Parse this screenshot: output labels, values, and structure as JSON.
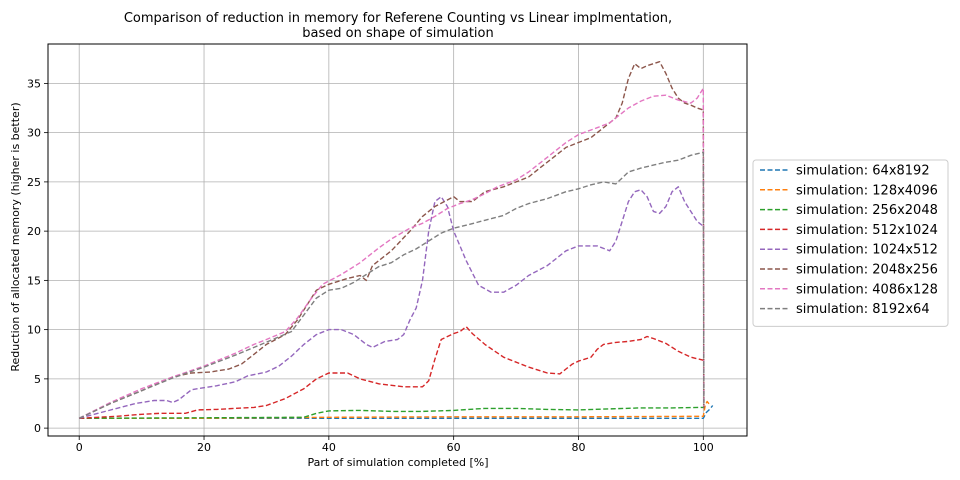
{
  "chart_data": {
    "type": "line",
    "title": "Comparison of reduction in memory for Referene Counting vs Linear implmentation,",
    "subtitle": "based on shape of simulation",
    "xlabel": "Part of simulation completed [%]",
    "ylabel": "Reduction of allocated memory (higher is better)",
    "xlim": [
      -5,
      107
    ],
    "ylim": [
      -0.8,
      39
    ],
    "xticks": [
      0,
      20,
      40,
      60,
      80,
      100
    ],
    "yticks": [
      0,
      5,
      10,
      15,
      20,
      25,
      30,
      35
    ],
    "grid": true,
    "legend_position": "right-outside",
    "series": [
      {
        "name": "simulation: 64x8192",
        "color": "#1f77b4",
        "points": [
          [
            0,
            1.0
          ],
          [
            20,
            1.0
          ],
          [
            40,
            1.0
          ],
          [
            60,
            1.0
          ],
          [
            80,
            1.0
          ],
          [
            100,
            1.0
          ],
          [
            100.5,
            1.6
          ],
          [
            101,
            1.9
          ],
          [
            101.5,
            2.3
          ]
        ]
      },
      {
        "name": "simulation: 128x4096",
        "color": "#ff7f0e",
        "points": [
          [
            0,
            1.0
          ],
          [
            20,
            1.0
          ],
          [
            40,
            1.1
          ],
          [
            60,
            1.15
          ],
          [
            80,
            1.15
          ],
          [
            100,
            1.2
          ],
          [
            100.3,
            2.3
          ],
          [
            100.6,
            2.7
          ],
          [
            101,
            2.4
          ]
        ]
      },
      {
        "name": "simulation: 256x2048",
        "color": "#2ca02c",
        "points": [
          [
            0,
            1.0
          ],
          [
            20,
            1.05
          ],
          [
            36,
            1.1
          ],
          [
            38,
            1.5
          ],
          [
            40,
            1.75
          ],
          [
            45,
            1.8
          ],
          [
            50,
            1.7
          ],
          [
            55,
            1.7
          ],
          [
            60,
            1.8
          ],
          [
            65,
            2.0
          ],
          [
            70,
            2.0
          ],
          [
            75,
            1.9
          ],
          [
            80,
            1.85
          ],
          [
            85,
            1.95
          ],
          [
            90,
            2.05
          ],
          [
            95,
            2.05
          ],
          [
            100,
            2.1
          ]
        ]
      },
      {
        "name": "simulation: 512x1024",
        "color": "#d62728",
        "points": [
          [
            0,
            1.0
          ],
          [
            3,
            1.1
          ],
          [
            6,
            1.2
          ],
          [
            10,
            1.4
          ],
          [
            13,
            1.5
          ],
          [
            17,
            1.5
          ],
          [
            19,
            1.85
          ],
          [
            22,
            1.9
          ],
          [
            25,
            2.0
          ],
          [
            28,
            2.1
          ],
          [
            30,
            2.3
          ],
          [
            33,
            3.0
          ],
          [
            36,
            4.0
          ],
          [
            38,
            5.0
          ],
          [
            40,
            5.6
          ],
          [
            43,
            5.6
          ],
          [
            45,
            5.0
          ],
          [
            48,
            4.5
          ],
          [
            52,
            4.2
          ],
          [
            55,
            4.2
          ],
          [
            56,
            4.8
          ],
          [
            57,
            7.0
          ],
          [
            58,
            9.0
          ],
          [
            60,
            9.6
          ],
          [
            61,
            9.8
          ],
          [
            62,
            10.3
          ],
          [
            63,
            9.6
          ],
          [
            65,
            8.5
          ],
          [
            68,
            7.2
          ],
          [
            72,
            6.2
          ],
          [
            75,
            5.6
          ],
          [
            77,
            5.5
          ],
          [
            78,
            6.0
          ],
          [
            79,
            6.5
          ],
          [
            80,
            6.8
          ],
          [
            81,
            7.0
          ],
          [
            82,
            7.2
          ],
          [
            83,
            8.0
          ],
          [
            84,
            8.5
          ],
          [
            86,
            8.7
          ],
          [
            88,
            8.8
          ],
          [
            90,
            9.0
          ],
          [
            91,
            9.3
          ],
          [
            92,
            9.1
          ],
          [
            94,
            8.6
          ],
          [
            96,
            7.8
          ],
          [
            98,
            7.2
          ],
          [
            100,
            6.9
          ]
        ]
      },
      {
        "name": "simulation: 1024x512",
        "color": "#9467bd",
        "points": [
          [
            0,
            1.0
          ],
          [
            3,
            1.5
          ],
          [
            6,
            2.0
          ],
          [
            9,
            2.5
          ],
          [
            12,
            2.8
          ],
          [
            14,
            2.8
          ],
          [
            15,
            2.6
          ],
          [
            16,
            2.9
          ],
          [
            17,
            3.4
          ],
          [
            18,
            3.9
          ],
          [
            20,
            4.1
          ],
          [
            22,
            4.3
          ],
          [
            25,
            4.7
          ],
          [
            27,
            5.3
          ],
          [
            30,
            5.7
          ],
          [
            32,
            6.3
          ],
          [
            34,
            7.3
          ],
          [
            36,
            8.5
          ],
          [
            38,
            9.5
          ],
          [
            40,
            10.0
          ],
          [
            42,
            10.0
          ],
          [
            44,
            9.5
          ],
          [
            46,
            8.5
          ],
          [
            47,
            8.2
          ],
          [
            49,
            8.8
          ],
          [
            51,
            9.0
          ],
          [
            52,
            9.5
          ],
          [
            53,
            11.0
          ],
          [
            54,
            12.2
          ],
          [
            55,
            15.0
          ],
          [
            56,
            20.0
          ],
          [
            57,
            23.0
          ],
          [
            58,
            23.5
          ],
          [
            59,
            22.5
          ],
          [
            60,
            20.0
          ],
          [
            62,
            17.0
          ],
          [
            64,
            14.5
          ],
          [
            66,
            13.8
          ],
          [
            68,
            13.8
          ],
          [
            70,
            14.5
          ],
          [
            72,
            15.5
          ],
          [
            75,
            16.5
          ],
          [
            78,
            18.0
          ],
          [
            80,
            18.5
          ],
          [
            83,
            18.5
          ],
          [
            85,
            18.0
          ],
          [
            86,
            19.0
          ],
          [
            87,
            21.0
          ],
          [
            88,
            23.0
          ],
          [
            89,
            24.0
          ],
          [
            90,
            24.2
          ],
          [
            91,
            23.5
          ],
          [
            92,
            22.0
          ],
          [
            93,
            21.8
          ],
          [
            94,
            22.5
          ],
          [
            95,
            24.0
          ],
          [
            96,
            24.5
          ],
          [
            97,
            23.0
          ],
          [
            98,
            22.0
          ],
          [
            99,
            21.0
          ],
          [
            100,
            20.5
          ]
        ]
      },
      {
        "name": "simulation: 2048x256",
        "color": "#8c564b",
        "points": [
          [
            0,
            1.0
          ],
          [
            5,
            2.5
          ],
          [
            10,
            3.8
          ],
          [
            15,
            5.2
          ],
          [
            18,
            5.6
          ],
          [
            21,
            5.7
          ],
          [
            24,
            6.0
          ],
          [
            26,
            6.5
          ],
          [
            28,
            7.5
          ],
          [
            30,
            8.5
          ],
          [
            33,
            9.5
          ],
          [
            35,
            11.0
          ],
          [
            37,
            13.0
          ],
          [
            38,
            14.0
          ],
          [
            40,
            14.6
          ],
          [
            43,
            15.2
          ],
          [
            45,
            15.5
          ],
          [
            46,
            15.0
          ],
          [
            47,
            16.5
          ],
          [
            50,
            18.0
          ],
          [
            53,
            20.0
          ],
          [
            55,
            21.5
          ],
          [
            57,
            22.5
          ],
          [
            60,
            23.5
          ],
          [
            61,
            23.0
          ],
          [
            63,
            23.0
          ],
          [
            65,
            24.0
          ],
          [
            68,
            24.5
          ],
          [
            70,
            25.0
          ],
          [
            72,
            25.5
          ],
          [
            74,
            26.5
          ],
          [
            76,
            27.5
          ],
          [
            78,
            28.5
          ],
          [
            80,
            29.0
          ],
          [
            82,
            29.5
          ],
          [
            84,
            30.5
          ],
          [
            86,
            31.5
          ],
          [
            87,
            33.0
          ],
          [
            88,
            35.5
          ],
          [
            89,
            37.0
          ],
          [
            90,
            36.5
          ],
          [
            91,
            36.8
          ],
          [
            92,
            37.0
          ],
          [
            93,
            37.2
          ],
          [
            94,
            36.0
          ],
          [
            95,
            34.5
          ],
          [
            96,
            33.5
          ],
          [
            97,
            33.0
          ],
          [
            98,
            32.8
          ],
          [
            99,
            32.5
          ],
          [
            100,
            32.3
          ],
          [
            100.1,
            2.0
          ]
        ]
      },
      {
        "name": "simulation: 4086x128",
        "color": "#e377c2",
        "points": [
          [
            0,
            1.0
          ],
          [
            5,
            2.6
          ],
          [
            10,
            4.0
          ],
          [
            15,
            5.2
          ],
          [
            20,
            6.3
          ],
          [
            25,
            7.6
          ],
          [
            28,
            8.5
          ],
          [
            30,
            9.0
          ],
          [
            33,
            9.8
          ],
          [
            35,
            11.2
          ],
          [
            37,
            13.0
          ],
          [
            39,
            14.6
          ],
          [
            42,
            15.6
          ],
          [
            45,
            16.8
          ],
          [
            48,
            18.3
          ],
          [
            50,
            19.2
          ],
          [
            53,
            20.3
          ],
          [
            55,
            20.8
          ],
          [
            57,
            21.5
          ],
          [
            59,
            22.3
          ],
          [
            61,
            22.8
          ],
          [
            63,
            23.2
          ],
          [
            65,
            23.8
          ],
          [
            67,
            24.5
          ],
          [
            70,
            25.2
          ],
          [
            72,
            26.0
          ],
          [
            75,
            27.5
          ],
          [
            78,
            29.0
          ],
          [
            80,
            29.8
          ],
          [
            83,
            30.5
          ],
          [
            85,
            31.0
          ],
          [
            87,
            32.0
          ],
          [
            88,
            32.5
          ],
          [
            90,
            33.2
          ],
          [
            92,
            33.7
          ],
          [
            94,
            33.8
          ],
          [
            96,
            33.3
          ],
          [
            98,
            33.0
          ],
          [
            99,
            33.5
          ],
          [
            100,
            34.5
          ],
          [
            100.1,
            2.2
          ]
        ]
      },
      {
        "name": "simulation: 8192x64",
        "color": "#7f7f7f",
        "points": [
          [
            0,
            1.0
          ],
          [
            5,
            2.5
          ],
          [
            10,
            3.8
          ],
          [
            15,
            5.1
          ],
          [
            20,
            6.2
          ],
          [
            25,
            7.4
          ],
          [
            28,
            8.2
          ],
          [
            31,
            9.0
          ],
          [
            34,
            9.8
          ],
          [
            36,
            11.5
          ],
          [
            38,
            13.2
          ],
          [
            40,
            14.0
          ],
          [
            42,
            14.2
          ],
          [
            44,
            14.8
          ],
          [
            46,
            15.6
          ],
          [
            48,
            16.4
          ],
          [
            50,
            16.8
          ],
          [
            52,
            17.6
          ],
          [
            54,
            18.2
          ],
          [
            56,
            19.0
          ],
          [
            58,
            19.8
          ],
          [
            60,
            20.3
          ],
          [
            62,
            20.6
          ],
          [
            65,
            21.1
          ],
          [
            68,
            21.6
          ],
          [
            70,
            22.3
          ],
          [
            72,
            22.8
          ],
          [
            75,
            23.3
          ],
          [
            78,
            24.0
          ],
          [
            80,
            24.3
          ],
          [
            82,
            24.7
          ],
          [
            84,
            25.0
          ],
          [
            86,
            24.8
          ],
          [
            88,
            26.0
          ],
          [
            90,
            26.4
          ],
          [
            92,
            26.7
          ],
          [
            94,
            27.0
          ],
          [
            96,
            27.2
          ],
          [
            98,
            27.7
          ],
          [
            100,
            28.0
          ],
          [
            100.1,
            2.1
          ]
        ]
      }
    ]
  }
}
